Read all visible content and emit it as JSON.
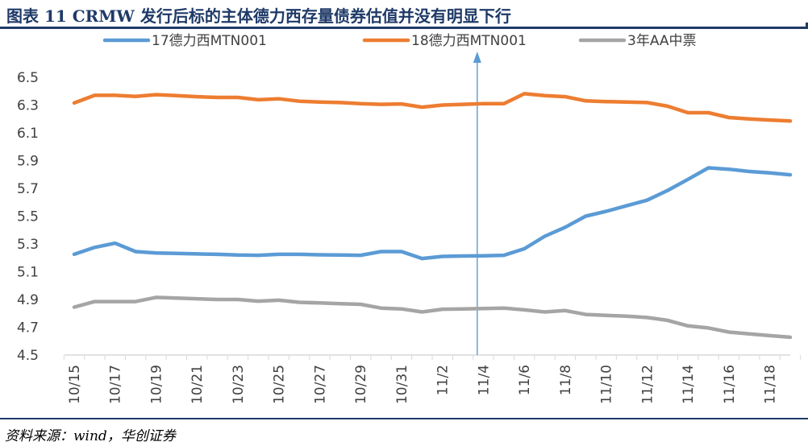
{
  "title": "图表 11   CRMW 发行后标的主体德力西存量债券估值并没有明显下行",
  "source": "资料来源：wind，华创证券",
  "colors": {
    "title": "#1f3a68",
    "series1": "#5b9bd5",
    "series2": "#ed7d31",
    "series3": "#a5a5a5",
    "axis": "#d9d9d9",
    "tick_text": "#404040",
    "annotation_arrow": "#5b9bd5"
  },
  "chart_data": {
    "type": "line",
    "xlabel": "",
    "ylabel": "",
    "ylim": [
      4.5,
      6.5
    ],
    "y_ticks": [
      "4.5",
      "4.7",
      "4.9",
      "5.1",
      "5.3",
      "5.5",
      "5.7",
      "5.9",
      "6.1",
      "6.3",
      "6.5"
    ],
    "x_tick_labels": [
      "10/15",
      "10/17",
      "10/19",
      "10/21",
      "10/23",
      "10/25",
      "10/27",
      "10/29",
      "10/31",
      "11/2",
      "11/4",
      "11/6",
      "11/8",
      "11/10",
      "11/12",
      "11/14",
      "11/16",
      "11/18"
    ],
    "grid": false,
    "legend_position": "top",
    "annotation": {
      "type": "vertical-arrow",
      "x_index": 20
    },
    "series": [
      {
        "name": "17德力西MTN001",
        "color": "#5b9bd5",
        "values": [
          5.225,
          5.275,
          5.305,
          5.245,
          5.235,
          5.232,
          5.228,
          5.225,
          5.22,
          5.218,
          5.225,
          5.225,
          5.222,
          5.22,
          5.218,
          5.245,
          5.245,
          5.195,
          5.21,
          5.213,
          5.215,
          5.218,
          5.265,
          5.355,
          5.42,
          5.5,
          5.535,
          5.575,
          5.615,
          5.685,
          5.765,
          5.848,
          5.838,
          5.822,
          5.812,
          5.798
        ]
      },
      {
        "name": "18德力西MTN001",
        "color": "#ed7d31",
        "values": [
          6.315,
          6.37,
          6.37,
          6.362,
          6.375,
          6.368,
          6.36,
          6.355,
          6.355,
          6.338,
          6.345,
          6.328,
          6.322,
          6.318,
          6.31,
          6.305,
          6.308,
          6.285,
          6.3,
          6.305,
          6.31,
          6.31,
          6.382,
          6.368,
          6.36,
          6.33,
          6.325,
          6.322,
          6.318,
          6.292,
          6.245,
          6.245,
          6.21,
          6.2,
          6.192,
          6.185
        ]
      },
      {
        "name": "3年AA中票",
        "color": "#a5a5a5",
        "values": [
          4.845,
          4.885,
          4.885,
          4.885,
          4.915,
          4.91,
          4.905,
          4.9,
          4.9,
          4.888,
          4.895,
          4.88,
          4.875,
          4.87,
          4.865,
          4.838,
          4.832,
          4.81,
          4.83,
          4.832,
          4.835,
          4.838,
          4.825,
          4.81,
          4.82,
          4.792,
          4.785,
          4.78,
          4.77,
          4.75,
          4.71,
          4.695,
          4.665,
          4.652,
          4.64,
          4.628
        ]
      }
    ]
  }
}
